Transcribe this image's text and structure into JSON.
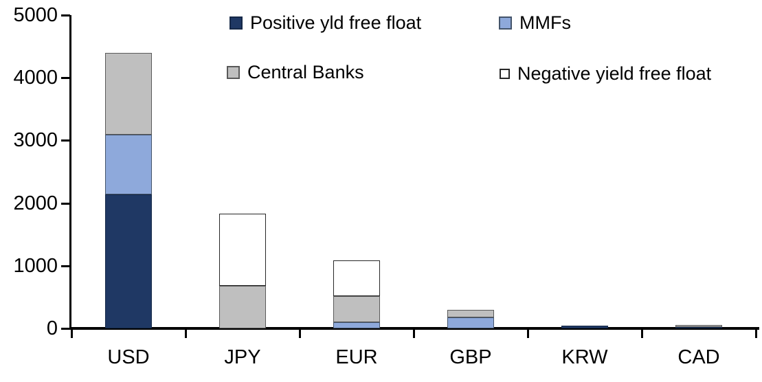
{
  "chart_data": {
    "type": "bar",
    "subtype": "stacked-vertical",
    "title": "",
    "xlabel": "",
    "ylabel": "",
    "categories": [
      "USD",
      "JPY",
      "EUR",
      "GBP",
      "KRW",
      "CAD"
    ],
    "series": [
      {
        "name": "Positive yld free float",
        "color": "#1F3864",
        "border": "#152847",
        "values": [
          2140,
          0,
          0,
          0,
          40,
          20
        ]
      },
      {
        "name": "MMFs",
        "color": "#8EA9DB",
        "border": "#44546A",
        "values": [
          950,
          0,
          100,
          170,
          0,
          0
        ]
      },
      {
        "name": "Central Banks",
        "color": "#BFBFBF",
        "border": "#595959",
        "values": [
          1310,
          680,
          410,
          130,
          0,
          40
        ]
      },
      {
        "name": "Negative yield free float",
        "color": "#FFFFFF",
        "border": "#262626",
        "values": [
          0,
          1150,
          580,
          0,
          0,
          0
        ]
      }
    ],
    "totals": [
      4400,
      1830,
      1090,
      300,
      40,
      60
    ],
    "ylim": [
      0,
      5000
    ],
    "yticks": [
      0,
      1000,
      2000,
      3000,
      4000,
      5000
    ],
    "grid": false,
    "legend_position": "top-inside-two-columns",
    "axis_color": "#000000",
    "background_color": "#FFFFFF"
  },
  "legend": {
    "items": [
      {
        "label": "Positive yld free float"
      },
      {
        "label": "MMFs"
      },
      {
        "label": "Central Banks"
      },
      {
        "label": "Negative yield free float"
      }
    ]
  }
}
